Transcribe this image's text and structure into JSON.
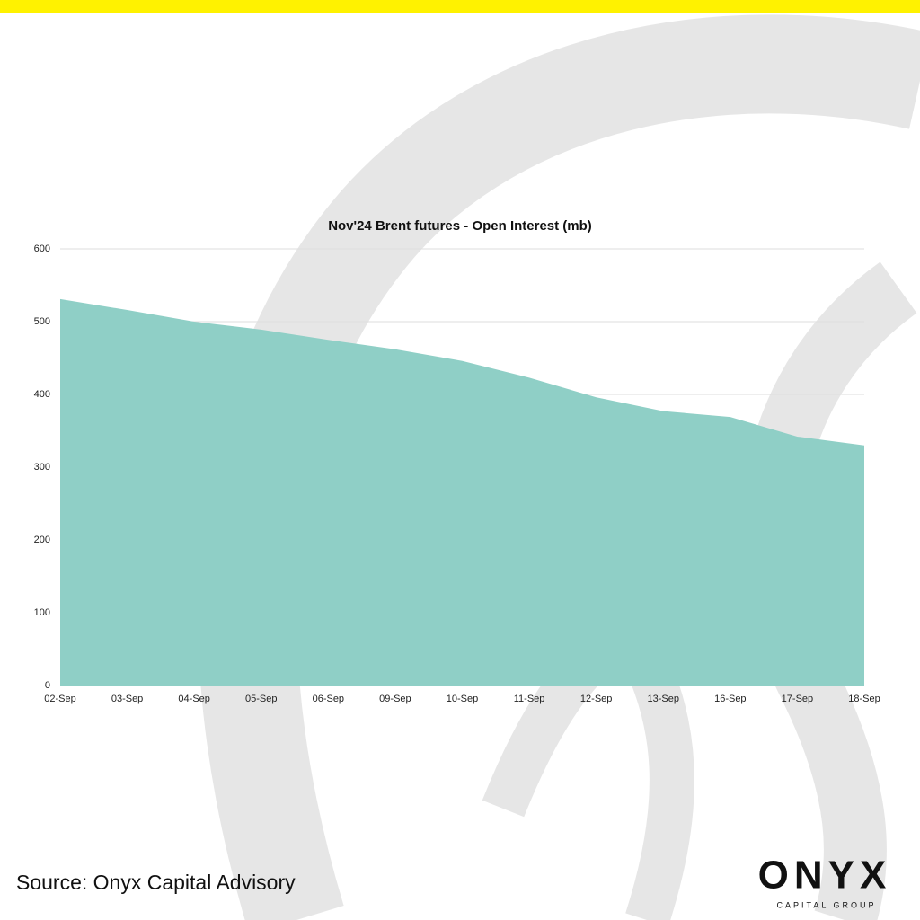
{
  "chart_data": {
    "type": "area",
    "title": "Nov'24 Brent futures - Open Interest (mb)",
    "categories": [
      "02-Sep",
      "03-Sep",
      "04-Sep",
      "05-Sep",
      "06-Sep",
      "09-Sep",
      "10-Sep",
      "11-Sep",
      "12-Sep",
      "13-Sep",
      "16-Sep",
      "17-Sep",
      "18-Sep"
    ],
    "values": [
      531,
      516,
      500,
      489,
      475,
      462,
      446,
      423,
      396,
      377,
      369,
      342,
      330
    ],
    "color": "#8fcfc6",
    "ylim": [
      0,
      600
    ],
    "yticks": [
      0,
      100,
      200,
      300,
      400,
      500,
      600
    ],
    "grid": true
  },
  "footer": {
    "source": "Source: Onyx Capital Advisory",
    "logo": {
      "name": "ONYX",
      "tagline": "CAPITAL GROUP"
    }
  }
}
